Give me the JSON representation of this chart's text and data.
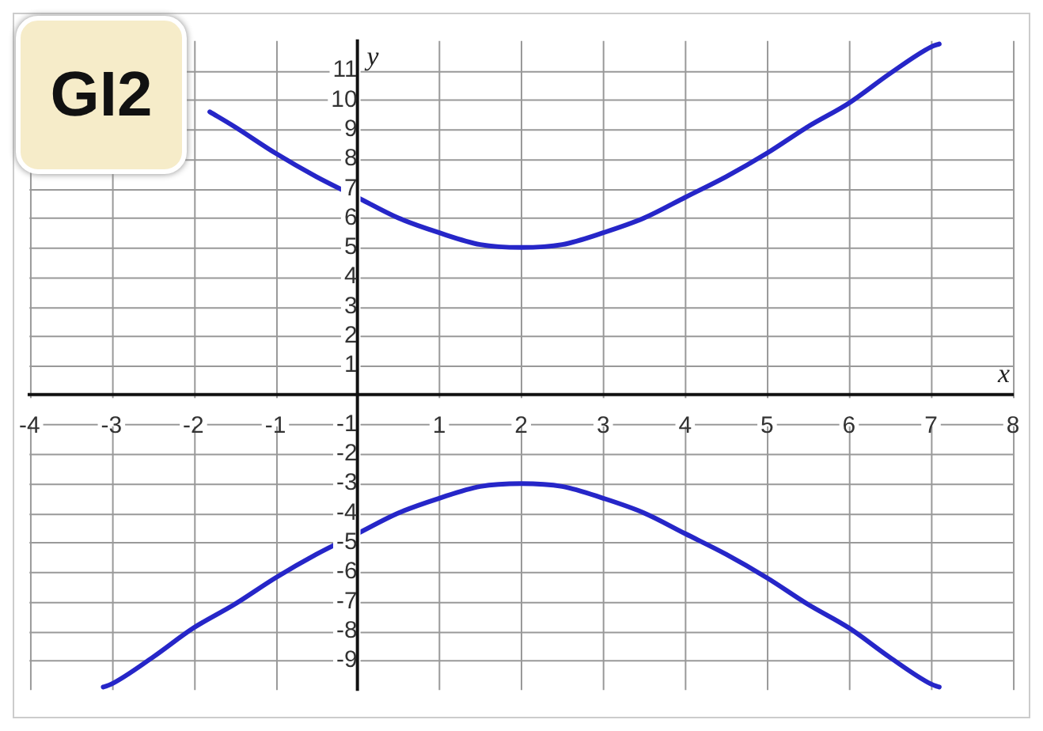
{
  "chart_data": {
    "type": "line",
    "xlabel": "x",
    "ylabel": "y",
    "annotations": [
      "GI2"
    ],
    "xlim": [
      -4,
      8
    ],
    "ylim": [
      -10,
      12
    ],
    "xticks": [
      -4,
      -3,
      -2,
      -1,
      1,
      2,
      3,
      4,
      5,
      6,
      7,
      8
    ],
    "yticks": [
      -9,
      -8,
      -7,
      -6,
      -5,
      -4,
      -3,
      -2,
      -1,
      1,
      2,
      3,
      4,
      5,
      6,
      7,
      8,
      9,
      10,
      11
    ],
    "grid": true,
    "legend": false,
    "marker": "none",
    "line_style": "solid",
    "series": [
      {
        "color": "#2626c8",
        "x": [
          -1.8,
          -1.5,
          -1,
          -0.5,
          0,
          0.5,
          1,
          1.5,
          2,
          2.5,
          3,
          3.5,
          4,
          4.5,
          5,
          5.5,
          6,
          6.5,
          7,
          7.1
        ],
        "values": [
          9.6,
          9.1,
          8.2,
          7.4,
          6.7,
          6.0,
          5.5,
          5.1,
          5.0,
          5.1,
          5.5,
          6.0,
          6.7,
          7.4,
          8.2,
          9.1,
          9.9,
          10.9,
          11.8,
          11.9
        ]
      },
      {
        "color": "#2626c8",
        "x": [
          -3.1,
          -3,
          -2.5,
          -2,
          -1.5,
          -1,
          -0.5,
          0,
          0.5,
          1,
          1.5,
          2,
          2.5,
          3,
          3.5,
          4,
          4.5,
          5,
          5.5,
          6,
          6.5,
          7,
          7.1
        ],
        "values": [
          -9.9,
          -9.8,
          -8.9,
          -7.9,
          -7.1,
          -6.2,
          -5.4,
          -4.7,
          -4.0,
          -3.5,
          -3.1,
          -3.0,
          -3.1,
          -3.5,
          -4.0,
          -4.7,
          -5.4,
          -6.2,
          -7.1,
          -7.9,
          -8.9,
          -9.8,
          -9.9
        ]
      }
    ]
  }
}
